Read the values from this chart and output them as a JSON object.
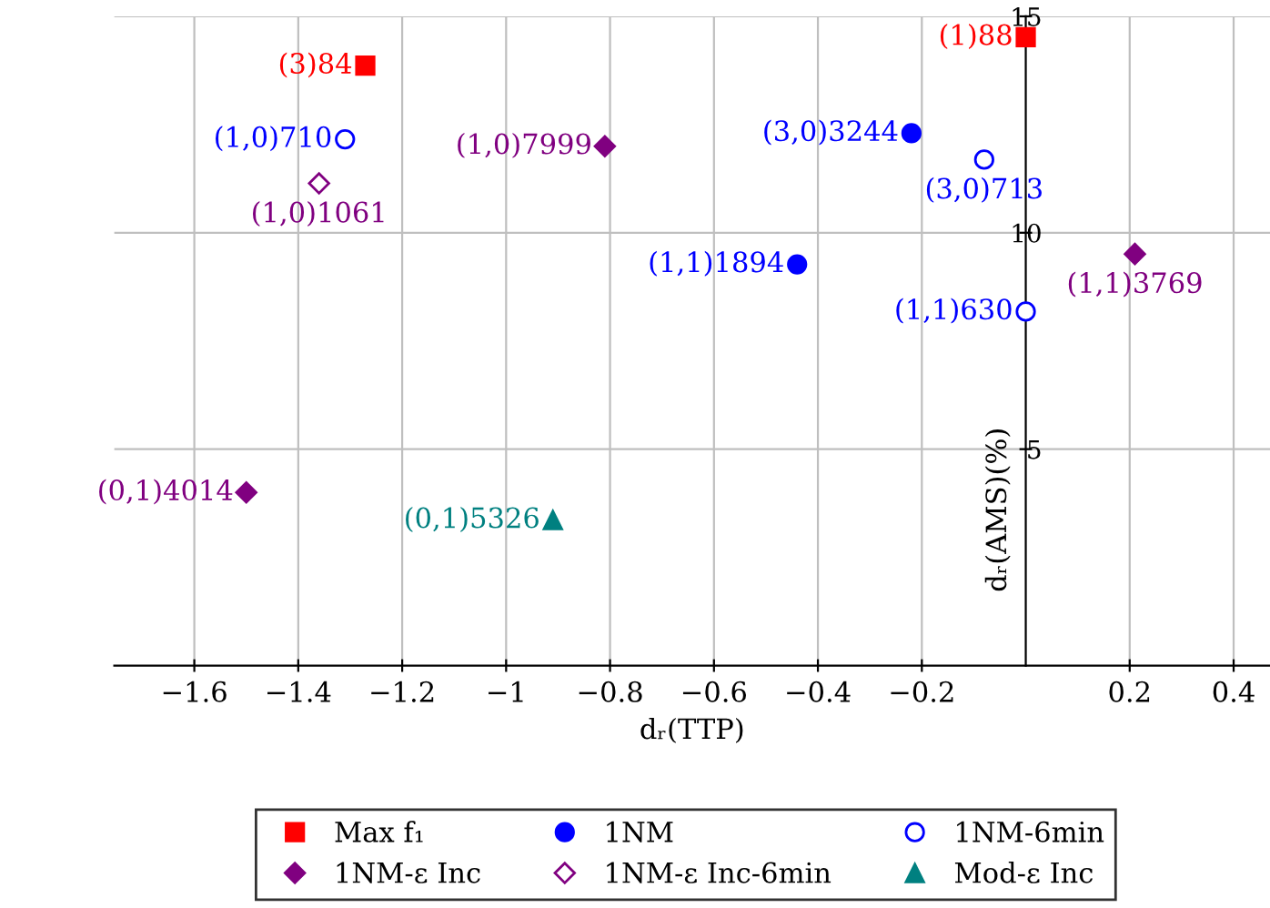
{
  "chart_data": {
    "type": "scatter",
    "xlabel": "dᵣ(TTP)",
    "ylabel": "dᵣ(AMS)(%)",
    "xlim": [
      -1.754,
      0.47
    ],
    "ylim": [
      0,
      15
    ],
    "xticks": [
      {
        "value": -1.6,
        "label": "−1.6"
      },
      {
        "value": -1.4,
        "label": "−1.4"
      },
      {
        "value": -1.2,
        "label": "−1.2"
      },
      {
        "value": -1,
        "label": "−1"
      },
      {
        "value": -0.8,
        "label": "−0.8"
      },
      {
        "value": -0.6,
        "label": "−0.6"
      },
      {
        "value": -0.4,
        "label": "−0.4"
      },
      {
        "value": -0.2,
        "label": "−0.2"
      },
      {
        "value": 0.2,
        "label": "0.2"
      },
      {
        "value": 0.4,
        "label": "0.4"
      }
    ],
    "yticks": [
      5,
      10,
      15
    ],
    "grid": true,
    "legend": "bottom",
    "series": [
      {
        "name": "Max f₁",
        "color": "#ff0000",
        "marker": "square",
        "x": [
          -1.271,
          0.0
        ],
        "values": [
          13.86,
          14.52
        ],
        "value_labels": [
          "(3)84",
          "(1)88"
        ]
      },
      {
        "name": "1NM",
        "color": "#0000ff",
        "marker": "circle",
        "x": [
          -0.22,
          -0.44
        ],
        "values": [
          12.3,
          9.27
        ],
        "value_labels": [
          "(3,0)3244",
          "(1,1)1894"
        ]
      },
      {
        "name": "1NM-6min",
        "color": "#0000ff",
        "marker": "circle",
        "x": [
          -1.31,
          -0.08,
          0.0
        ],
        "values": [
          12.16,
          11.69,
          8.18
        ],
        "value_labels": [
          "(1,0)710",
          "(3,0)713",
          "(1,1)630"
        ]
      },
      {
        "name": "1NM-ε Inc",
        "color": "#800080",
        "marker": "diamond",
        "x": [
          -0.81,
          0.21,
          -1.5
        ],
        "values": [
          12.0,
          9.51,
          4.0
        ],
        "value_labels": [
          "(1,0)7999",
          "(1,1)3769",
          "(0,1)4014"
        ]
      },
      {
        "name": "1NM-ε Inc-6min",
        "color": "#800080",
        "marker": "diamond",
        "x": [
          -1.36
        ],
        "values": [
          11.14
        ],
        "value_labels": [
          "(1,0)1061"
        ]
      },
      {
        "name": "Mod-ε Inc",
        "color": "#008080",
        "marker": "triangle",
        "x": [
          -0.91
        ],
        "values": [
          3.36
        ],
        "value_labels": [
          "(0,1)5326"
        ]
      }
    ]
  }
}
